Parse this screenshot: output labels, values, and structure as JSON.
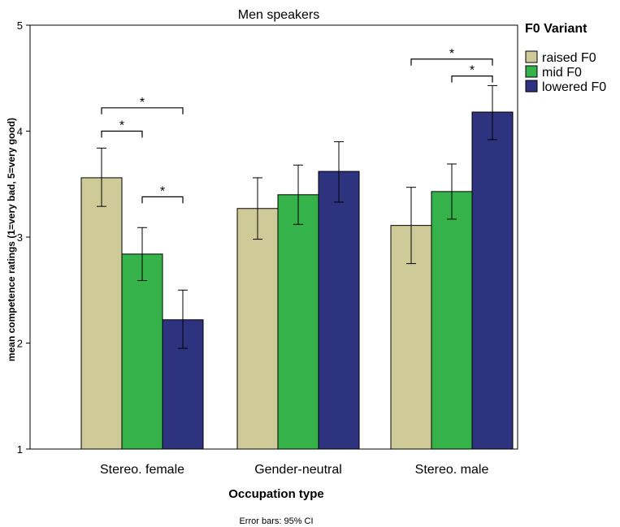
{
  "chart_data": {
    "type": "bar",
    "title": "Men speakers",
    "xlabel": "Occupation type",
    "ylabel": "mean competence ratings (1=very bad, 5=very good)",
    "note": "Error bars: 95% CI",
    "ylim": [
      1,
      5
    ],
    "yticks": [
      "1",
      "2",
      "3",
      "4",
      "5"
    ],
    "categories": [
      "Stereo. female",
      "Gender-neutral",
      "Stereo. male"
    ],
    "legend": {
      "title": "F0 Variant",
      "position": "top-right"
    },
    "series": [
      {
        "name": "raised F0",
        "color": "#cfcb98",
        "values": [
          3.56,
          3.27,
          3.11
        ],
        "ci_low": [
          3.29,
          2.98,
          2.75
        ],
        "ci_high": [
          3.84,
          3.56,
          3.47
        ]
      },
      {
        "name": "mid F0",
        "color": "#35b24a",
        "values": [
          2.84,
          3.4,
          3.43
        ],
        "ci_low": [
          2.59,
          3.12,
          3.17
        ],
        "ci_high": [
          3.09,
          3.68,
          3.69
        ]
      },
      {
        "name": "lowered F0",
        "color": "#2e3380",
        "values": [
          2.22,
          3.62,
          4.18
        ],
        "ci_low": [
          1.95,
          3.33,
          3.92
        ],
        "ci_high": [
          2.5,
          3.9,
          4.43
        ]
      }
    ],
    "significance": [
      {
        "category": 0,
        "from": 0,
        "to": 2,
        "y": 4.22,
        "label": "*"
      },
      {
        "category": 0,
        "from": 0,
        "to": 1,
        "y": 4.0,
        "label": "*"
      },
      {
        "category": 0,
        "from": 1,
        "to": 2,
        "y": 3.38,
        "label": "*"
      },
      {
        "category": 2,
        "from": 0,
        "to": 2,
        "y": 4.68,
        "label": "*"
      },
      {
        "category": 2,
        "from": 1,
        "to": 2,
        "y": 4.52,
        "label": "*"
      }
    ]
  }
}
